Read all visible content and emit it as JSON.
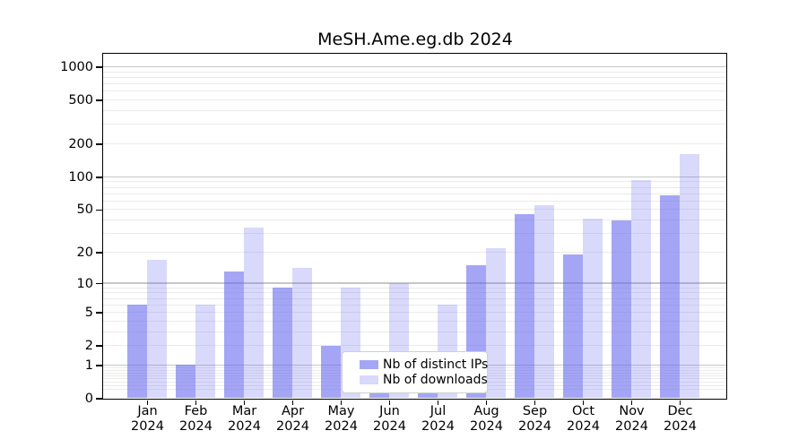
{
  "title": "MeSH.Ame.eg.db 2024",
  "chart_data": {
    "type": "bar",
    "title": "MeSH.Ame.eg.db 2024",
    "categories": [
      "Jan",
      "Feb",
      "Mar",
      "Apr",
      "May",
      "Jun",
      "Jul",
      "Aug",
      "Sep",
      "Oct",
      "Nov",
      "Dec"
    ],
    "year_label": "2024",
    "series": [
      {
        "name": "Nb of distinct IPs",
        "values": [
          6,
          1,
          13,
          9,
          2,
          1,
          1,
          15,
          45,
          19,
          40,
          68
        ]
      },
      {
        "name": "Nb of downloads",
        "values": [
          17,
          6,
          34,
          14,
          9,
          10,
          6,
          22,
          55,
          41,
          93,
          160
        ]
      }
    ],
    "xlabel": "",
    "ylabel": "",
    "y_axis": {
      "scale": "log10(1+x)",
      "ylim": [
        0,
        1360
      ],
      "ticks_labeled": [
        0,
        1,
        2,
        5,
        10,
        20,
        50,
        100,
        200,
        500,
        1000
      ],
      "grid_major": [
        1,
        10,
        100,
        1000
      ],
      "grid_minor": [
        0.2,
        0.3,
        0.4,
        0.5,
        0.6,
        0.7,
        0.8,
        0.9,
        2,
        3,
        4,
        5,
        6,
        7,
        8,
        9,
        20,
        30,
        40,
        50,
        60,
        70,
        80,
        90,
        200,
        300,
        400,
        500,
        600,
        700,
        800,
        900
      ]
    },
    "grid": true,
    "legend_position": "lower center",
    "colors": {
      "distinct_ips_bar": "rgba(102,102,238,0.59)",
      "downloads_bar": "rgba(102,102,238,0.25)",
      "grid_major": "#c6c6c6",
      "grid_minor": "#ebebeb",
      "axis": "#000000"
    }
  },
  "legend": {
    "item1": "Nb of distinct IPs",
    "item2": "Nb of downloads"
  }
}
